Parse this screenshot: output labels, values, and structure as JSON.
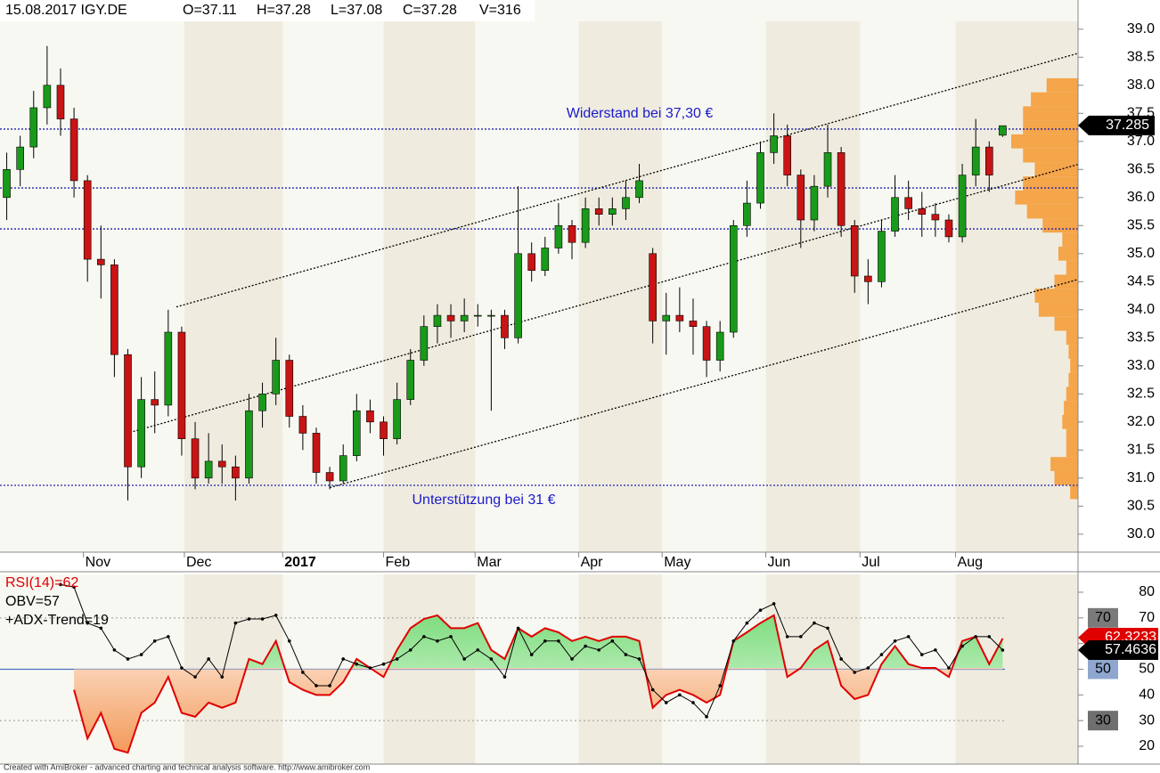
{
  "header": {
    "symbol": "15.08.2017 IGY.DE",
    "open": "O=37.11",
    "high": "H=37.28",
    "low": "L=37.08",
    "close": "C=37.28",
    "volume": "V=316"
  },
  "chart_data": [
    {
      "type": "candlestick",
      "up_color": "#1a9a1a",
      "down_color": "#c81414",
      "xlim": [
        -0.5,
        79.6
      ],
      "xticks": [
        {
          "value": 5.7,
          "label": "Nov"
        },
        {
          "value": 13.2,
          "label": "Dec"
        },
        {
          "value": 20.5,
          "label": "2017"
        },
        {
          "value": 28,
          "label": "Feb"
        },
        {
          "value": 34.8,
          "label": "Mar"
        },
        {
          "value": 42.5,
          "label": "Apr"
        },
        {
          "value": 48.7,
          "label": "May"
        },
        {
          "value": 56.4,
          "label": "Jun"
        },
        {
          "value": 63.4,
          "label": "Jul"
        },
        {
          "value": 70.5,
          "label": "Aug"
        }
      ],
      "ylim": [
        29.68,
        39.52
      ],
      "yticks": [
        {
          "value": 30,
          "label": "30.0"
        },
        30.5,
        {
          "value": 31,
          "label": "31.0"
        },
        31.5,
        {
          "value": 32,
          "label": "32.0"
        },
        32.5,
        {
          "value": 33,
          "label": "33.0"
        },
        33.5,
        {
          "value": 34,
          "label": "34.0"
        },
        34.5,
        {
          "value": 35,
          "label": "35.0"
        },
        35.5,
        {
          "value": 36,
          "label": "36.0"
        },
        36.5,
        {
          "value": 37,
          "label": "37.0"
        },
        37.5,
        {
          "value": 38,
          "label": "38.0"
        },
        38.5,
        {
          "value": 39,
          "label": "39.0"
        }
      ],
      "ohlc": [
        [
          36.0,
          36.8,
          35.6,
          36.5
        ],
        [
          36.5,
          37.1,
          36.2,
          36.9
        ],
        [
          36.9,
          37.9,
          36.7,
          37.6
        ],
        [
          37.6,
          38.7,
          37.3,
          38.0
        ],
        [
          38.0,
          38.3,
          37.1,
          37.4
        ],
        [
          37.4,
          37.6,
          36.0,
          36.3
        ],
        [
          36.3,
          36.4,
          34.5,
          34.9
        ],
        [
          34.9,
          35.5,
          34.2,
          34.8
        ],
        [
          34.8,
          34.9,
          32.8,
          33.2
        ],
        [
          33.2,
          33.3,
          30.6,
          31.2
        ],
        [
          31.2,
          32.8,
          31.0,
          32.4
        ],
        [
          32.4,
          32.9,
          31.8,
          32.3
        ],
        [
          32.3,
          34.0,
          32.1,
          33.6
        ],
        [
          33.6,
          33.7,
          31.4,
          31.7
        ],
        [
          31.7,
          32.0,
          30.8,
          31.0
        ],
        [
          31.0,
          31.8,
          30.9,
          31.3
        ],
        [
          31.3,
          31.6,
          30.9,
          31.2
        ],
        [
          31.2,
          31.4,
          30.6,
          31.0
        ],
        [
          31.0,
          32.5,
          30.9,
          32.2
        ],
        [
          32.2,
          32.7,
          31.9,
          32.5
        ],
        [
          32.5,
          33.5,
          32.3,
          33.1
        ],
        [
          33.1,
          33.2,
          31.9,
          32.1
        ],
        [
          32.1,
          32.3,
          31.5,
          31.8
        ],
        [
          31.8,
          31.9,
          30.9,
          31.1
        ],
        [
          31.1,
          31.2,
          30.8,
          30.95
        ],
        [
          30.95,
          31.6,
          30.9,
          31.4
        ],
        [
          31.4,
          32.5,
          31.3,
          32.2
        ],
        [
          32.2,
          32.4,
          31.8,
          32.0
        ],
        [
          32.0,
          32.1,
          31.4,
          31.7
        ],
        [
          31.7,
          32.7,
          31.6,
          32.4
        ],
        [
          32.4,
          33.3,
          32.3,
          33.1
        ],
        [
          33.1,
          33.9,
          33.0,
          33.7
        ],
        [
          33.7,
          34.1,
          33.4,
          33.9
        ],
        [
          33.9,
          34.1,
          33.5,
          33.8
        ],
        [
          33.8,
          34.2,
          33.6,
          33.9
        ],
        [
          33.9,
          34.1,
          33.7,
          33.9
        ],
        [
          33.9,
          34.0,
          32.2,
          33.9
        ],
        [
          33.9,
          34.0,
          33.3,
          33.5
        ],
        [
          33.5,
          36.2,
          33.4,
          35.0
        ],
        [
          35.0,
          35.2,
          34.5,
          34.7
        ],
        [
          34.7,
          35.3,
          34.6,
          35.1
        ],
        [
          35.1,
          35.9,
          35.0,
          35.5
        ],
        [
          35.5,
          35.6,
          34.9,
          35.2
        ],
        [
          35.2,
          36.0,
          35.1,
          35.8
        ],
        [
          35.8,
          36.0,
          35.5,
          35.7
        ],
        [
          35.7,
          36.0,
          35.5,
          35.8
        ],
        [
          35.8,
          36.3,
          35.6,
          36.0
        ],
        [
          36.0,
          36.6,
          35.9,
          36.3
        ],
        [
          35.0,
          35.1,
          33.4,
          33.8
        ],
        [
          33.8,
          34.3,
          33.2,
          33.9
        ],
        [
          33.9,
          34.4,
          33.6,
          33.8
        ],
        [
          33.8,
          34.2,
          33.2,
          33.7
        ],
        [
          33.7,
          33.8,
          32.8,
          33.1
        ],
        [
          33.1,
          33.8,
          32.9,
          33.6
        ],
        [
          33.6,
          35.6,
          33.5,
          35.5
        ],
        [
          35.5,
          36.3,
          35.3,
          35.9
        ],
        [
          35.9,
          37.0,
          35.8,
          36.8
        ],
        [
          36.8,
          37.5,
          36.6,
          37.1
        ],
        [
          37.1,
          37.3,
          36.2,
          36.4
        ],
        [
          36.4,
          36.5,
          35.1,
          35.6
        ],
        [
          35.6,
          36.4,
          35.4,
          36.2
        ],
        [
          36.2,
          37.3,
          36.0,
          36.8
        ],
        [
          36.8,
          36.9,
          35.3,
          35.5
        ],
        [
          35.5,
          35.6,
          34.3,
          34.6
        ],
        [
          34.6,
          34.9,
          34.1,
          34.5
        ],
        [
          34.5,
          35.6,
          34.4,
          35.4
        ],
        [
          35.4,
          36.4,
          35.3,
          36.0
        ],
        [
          36.0,
          36.3,
          35.6,
          35.8
        ],
        [
          35.8,
          36.1,
          35.3,
          35.7
        ],
        [
          35.7,
          35.9,
          35.3,
          35.6
        ],
        [
          35.6,
          35.7,
          35.2,
          35.3
        ],
        [
          35.3,
          36.6,
          35.2,
          36.4
        ],
        [
          36.4,
          37.4,
          36.2,
          36.9
        ],
        [
          36.9,
          37.0,
          36.1,
          36.4
        ],
        [
          37.11,
          37.28,
          37.08,
          37.28
        ]
      ],
      "hlines": [
        37.22,
        36.17,
        35.44,
        30.87
      ],
      "trendlines": [
        [
          [
            12.6,
            34.05
          ],
          [
            79.6,
            38.57
          ]
        ],
        [
          [
            9.4,
            31.83
          ],
          [
            79.6,
            36.59
          ]
        ],
        [
          [
            24.0,
            30.83
          ],
          [
            79.6,
            34.54
          ]
        ]
      ],
      "annotations": [
        "Widerstand bei 37,30 €",
        "Unterstützung bei 31 €"
      ],
      "last_price": 37.285,
      "volume_profile": {
        "color": "#f5a54a",
        "prices": [
          38.0,
          37.75,
          37.5,
          37.25,
          37.0,
          36.75,
          36.5,
          36.25,
          36.0,
          35.75,
          35.5,
          35.25,
          35.0,
          34.75,
          34.5,
          34.25,
          34.0,
          33.75,
          33.5,
          33.25,
          33.0,
          32.75,
          32.5,
          32.25,
          32.0,
          31.75,
          31.5,
          31.25,
          31.0,
          30.75
        ],
        "values": [
          40,
          60,
          70,
          70,
          85,
          70,
          55,
          70,
          80,
          65,
          45,
          20,
          25,
          15,
          30,
          55,
          50,
          30,
          15,
          12,
          10,
          12,
          15,
          18,
          20,
          15,
          15,
          35,
          30,
          10
        ]
      }
    },
    {
      "type": "line",
      "xlim": [
        -0.5,
        79.6
      ],
      "ylim": [
        13.06,
        86.94
      ],
      "yticks": [
        20,
        30,
        40,
        50,
        60,
        70,
        80
      ],
      "levels": [
        70,
        50,
        30
      ],
      "level_colors": [
        "#7a7a7a",
        "#8fa7cf",
        "#6f6f6f"
      ],
      "extra_legend": "+ADX-Trend=19",
      "series": [
        {
          "name": "RSI(14)=62",
          "color": "#e00000",
          "last": 62.3233,
          "last_label": "62.3233",
          "values": [
            null,
            null,
            null,
            null,
            null,
            42,
            23,
            33,
            19,
            17.5,
            33,
            37,
            47,
            33,
            31.5,
            37,
            35,
            37,
            54,
            52,
            61,
            45,
            42,
            40,
            40,
            45,
            54,
            50.5,
            47,
            57.5,
            66,
            69.6,
            71,
            66,
            66,
            68,
            57.5,
            54,
            66,
            62.7,
            66,
            64.4,
            61,
            62.7,
            61,
            62.7,
            62.7,
            61,
            35,
            40,
            42,
            40,
            37,
            40,
            61,
            64.4,
            68,
            71,
            47,
            50.5,
            57.5,
            61,
            43.6,
            38.4,
            40,
            52,
            59,
            52,
            50.5,
            50.5,
            47,
            61,
            62.7,
            52,
            62
          ]
        },
        {
          "name": "OBV=57",
          "color": "#000000",
          "last": 57.4636,
          "last_label": "57.4636",
          "values": [
            null,
            null,
            null,
            null,
            83,
            82,
            68,
            66,
            57.5,
            54,
            55.7,
            61,
            62.7,
            50.5,
            47,
            54,
            47,
            68,
            69.6,
            69.6,
            71,
            61,
            48.8,
            43.6,
            43.6,
            54,
            52,
            50.5,
            52,
            54,
            57.5,
            62.7,
            61,
            62.7,
            54,
            57.5,
            54,
            47,
            66,
            55.7,
            61,
            61,
            54,
            59,
            57.5,
            61,
            55.7,
            54,
            42,
            37,
            40,
            37,
            31.5,
            43.6,
            61,
            68,
            73,
            75.5,
            62.7,
            62.7,
            68,
            66,
            54,
            48.8,
            50.5,
            55.7,
            61,
            62.7,
            55.7,
            57.5,
            50.5,
            59,
            62.7,
            62.7,
            57.46
          ]
        }
      ]
    }
  ],
  "footer": "Created with AmiBroker - advanced charting and technical analysis software. http://www.amibroker.com"
}
